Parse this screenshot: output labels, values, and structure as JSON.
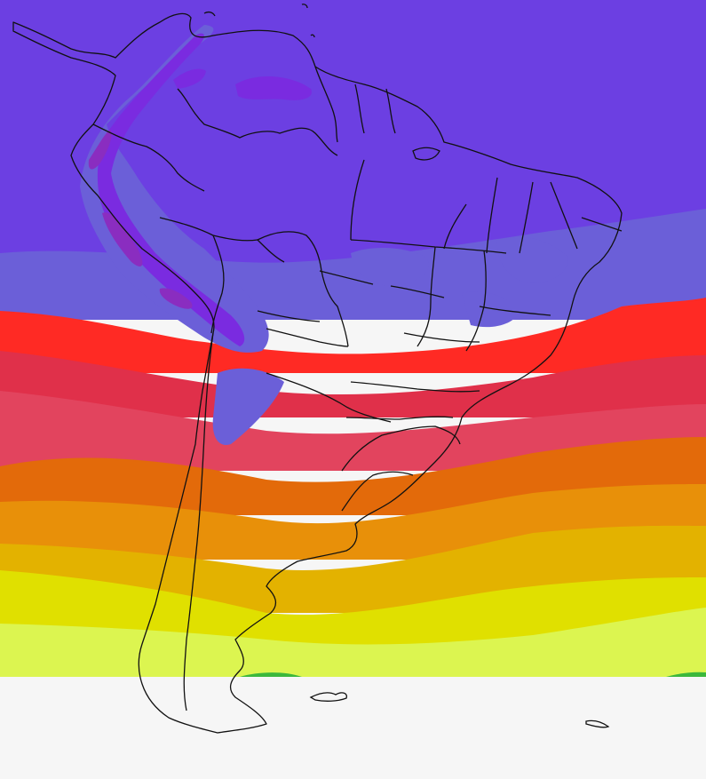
{
  "map": {
    "colors": {
      "band_purple_dark": "#6c3fe2",
      "band_purple_mid": "#6b5fd8",
      "band_red": "#ff2a24",
      "band_crimson": "#e0304a",
      "band_pink": "#e2445e",
      "band_orange": "#e36a0a",
      "band_orange_light": "#e89009",
      "band_gold": "#e3b200",
      "band_yellow": "#e0e000",
      "band_lime": "#dcf550",
      "band_green": "#3cb83c",
      "high_terrain_purple": "#7a2be0",
      "peak_purple": "#8a2dc0",
      "no_data": "#f6f6f6",
      "outline": "#111111"
    },
    "icons": [
      "color-fill-map",
      "country-borders",
      "state-borders"
    ]
  }
}
